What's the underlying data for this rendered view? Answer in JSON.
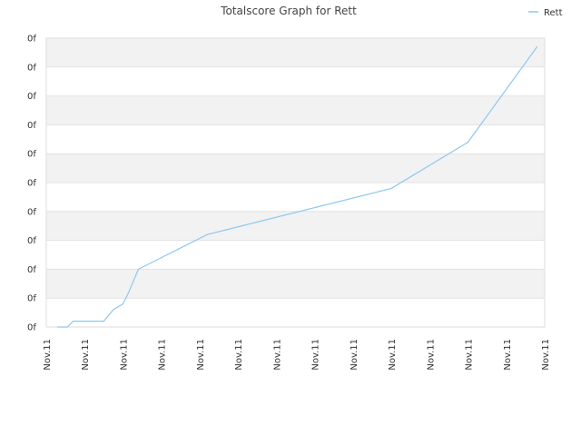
{
  "chart_data": {
    "type": "line",
    "title": "Totalscore Graph for Rett",
    "xlabel": "",
    "ylabel": "",
    "x_tick_labels": [
      "Nov.11",
      "Nov.11",
      "Nov.11",
      "Nov.11",
      "Nov.11",
      "Nov.11",
      "Nov.11",
      "Nov.11",
      "Nov.11",
      "Nov.11",
      "Nov.11",
      "Nov.11",
      "Nov.11",
      "Nov.11"
    ],
    "y_tick_labels": [
      "0f",
      "0f",
      "0f",
      "0f",
      "0f",
      "0f",
      "0f",
      "0f",
      "0f",
      "0f",
      "0f"
    ],
    "ylim": [
      0,
      10
    ],
    "xlim": [
      0,
      13
    ],
    "grid": true,
    "alternate_band_color": "#f2f2f2",
    "legend_position": "top-right",
    "series": [
      {
        "name": "Rett",
        "color": "#8ec7ef",
        "points": [
          [
            0.3,
            0.0
          ],
          [
            0.55,
            0.0
          ],
          [
            0.7,
            0.2
          ],
          [
            1.5,
            0.2
          ],
          [
            1.75,
            0.6
          ],
          [
            2.0,
            0.8
          ],
          [
            2.15,
            1.2
          ],
          [
            2.4,
            2.0
          ],
          [
            4.2,
            3.2
          ],
          [
            9.0,
            4.8
          ],
          [
            11.0,
            6.4
          ],
          [
            12.8,
            9.7
          ]
        ]
      }
    ]
  }
}
